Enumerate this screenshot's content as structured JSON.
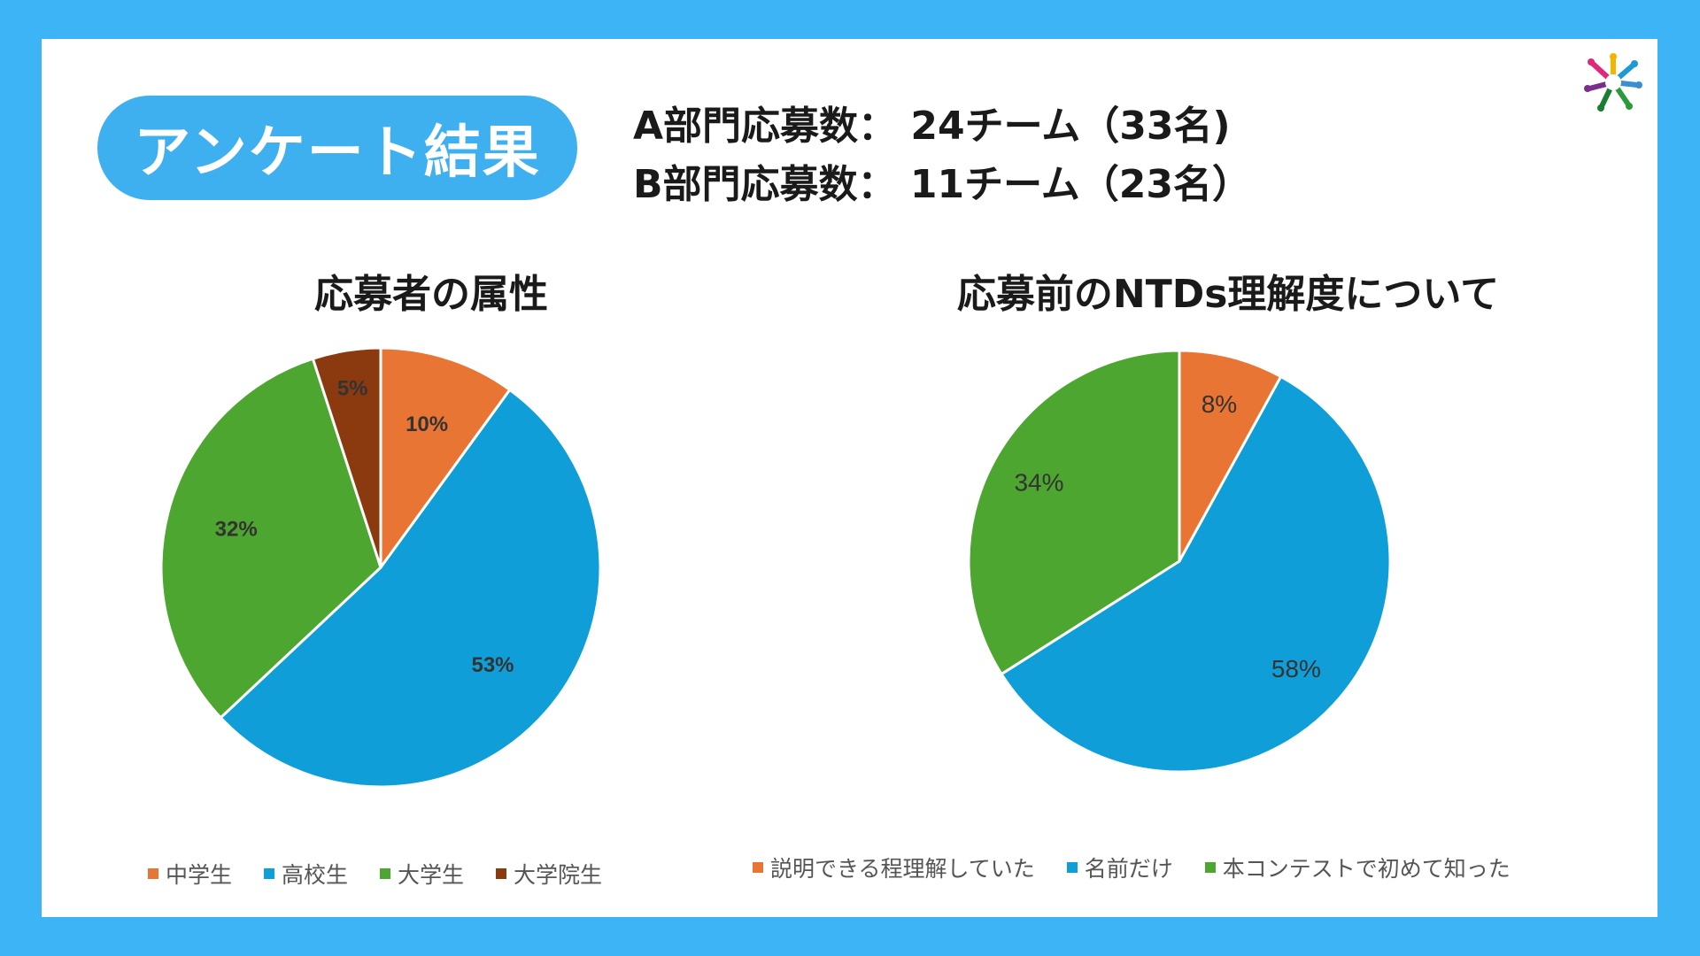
{
  "page": {
    "badge_title": "アンケート結果",
    "count_a": "A部門応募数： 24チーム（33名)",
    "count_b": "B部門応募数： 11チーム（23名）",
    "logo_icon": "colorful-people-circle-logo-icon",
    "colors": {
      "frame": "#3cb4f6",
      "badge": "#3eb0ef"
    }
  },
  "chart_data": [
    {
      "type": "pie",
      "title": "応募者の属性",
      "slices": [
        {
          "label": "中学生",
          "value": 10,
          "display": "10%",
          "color": "#e97534"
        },
        {
          "label": "高校生",
          "value": 53,
          "display": "53%",
          "color": "#0f9ed8"
        },
        {
          "label": "大学生",
          "value": 32,
          "display": "32%",
          "color": "#4ca62f"
        },
        {
          "label": "大学院生",
          "value": 5,
          "display": "5%",
          "color": "#8b3a0f"
        }
      ],
      "legend_position": "bottom"
    },
    {
      "type": "pie",
      "title": "応募前のNTDs理解度について",
      "slices": [
        {
          "label": "説明できる程理解していた",
          "value": 8,
          "display": "8%",
          "color": "#e97534"
        },
        {
          "label": "名前だけ",
          "value": 58,
          "display": "58%",
          "color": "#0f9ed8"
        },
        {
          "label": "本コンテストで初めて知った",
          "value": 34,
          "display": "34%",
          "color": "#4ca62f"
        }
      ],
      "legend_position": "bottom"
    }
  ]
}
